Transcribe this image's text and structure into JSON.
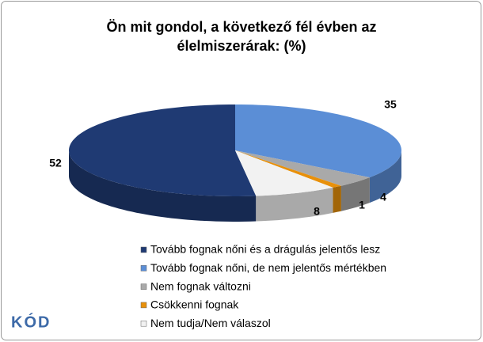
{
  "chart_data": {
    "type": "pie3d",
    "title": "Ön mit gondol, a következő fél évben az élelmiszerárak: (%)",
    "series": [
      {
        "name": "Tovább fognak nőni és a drágulás jelentős lesz",
        "color": "#1f3a73",
        "value": 52
      },
      {
        "name": "Tovább fognak nőni, de nem jelentős mértékben",
        "color": "#5b8ed6",
        "value": 35
      },
      {
        "name": "Nem fognak változni",
        "color": "#a9a9a9",
        "value": 4
      },
      {
        "name": "Csökkenni fognak",
        "color": "#e8900a",
        "value": 1
      },
      {
        "name": "Nem tudja/Nem válaszol",
        "color": "#f2f2f2",
        "value": 8
      }
    ],
    "logo": "KÓD"
  }
}
